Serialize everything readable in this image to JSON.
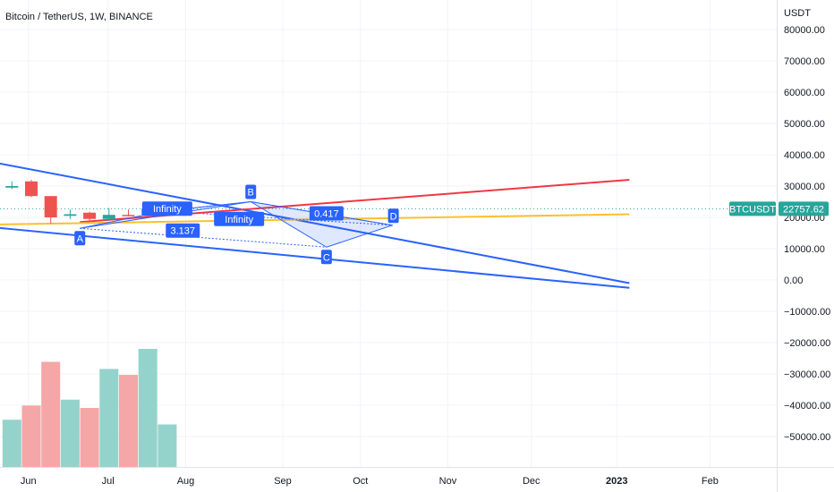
{
  "header": {
    "title": "Bitcoin / TetherUS, 1W, BINANCE"
  },
  "price_axis": {
    "currency": "USDT"
  },
  "chart_data": {
    "type": "candlestick",
    "x_ticks": [
      "Jun",
      "Jul",
      "Aug",
      "Sep",
      "Oct",
      "Nov",
      "Dec",
      "2023",
      "Feb"
    ],
    "bold_x_ticks": [
      "2023"
    ],
    "y_ticks": [
      80000,
      70000,
      60000,
      50000,
      40000,
      30000,
      20000,
      10000,
      0,
      -10000,
      -20000,
      -30000,
      -40000,
      -50000
    ],
    "y_tick_labels": [
      "80000.00",
      "70000.00",
      "60000.00",
      "50000.00",
      "40000.00",
      "30000.00",
      "20000.00",
      "10000.00",
      "0.00",
      "−10000.00",
      "−20000.00",
      "−30000.00",
      "−40000.00",
      "−50000.00"
    ],
    "grid": true,
    "last_price": {
      "symbol": "BTCUSDT",
      "value": 22757.62,
      "label": "22757.62",
      "color": "#26a69a"
    },
    "candles": [
      {
        "week": -1,
        "open": 29500,
        "high": 31500,
        "low": 29000,
        "close": 30000
      },
      {
        "week": 0,
        "open": 31500,
        "high": 32000,
        "low": 26500,
        "close": 26800
      },
      {
        "week": 1,
        "open": 26800,
        "high": 26800,
        "low": 18000,
        "close": 20000
      },
      {
        "week": 2,
        "open": 20500,
        "high": 22500,
        "low": 19500,
        "close": 21000
      },
      {
        "week": 3,
        "open": 21500,
        "high": 21800,
        "low": 18700,
        "close": 19500
      },
      {
        "week": 4,
        "open": 19500,
        "high": 23000,
        "low": 18800,
        "close": 20800
      },
      {
        "week": 5,
        "open": 20800,
        "high": 22500,
        "low": 20300,
        "close": 20700
      },
      {
        "week": 6,
        "open": 20800,
        "high": 24500,
        "low": 20500,
        "close": 22800
      }
    ],
    "volume": {
      "weeks": [
        -1,
        0,
        1,
        2,
        3,
        4,
        5,
        6,
        7
      ],
      "values": [
        0.4,
        0.52,
        0.89,
        0.57,
        0.5,
        0.83,
        0.78,
        1.0,
        0.36
      ],
      "colors": [
        "up",
        "down",
        "down",
        "up",
        "down",
        "up",
        "down",
        "up",
        "up"
      ]
    },
    "colors": {
      "up": "#26a69a",
      "down": "#ef5350",
      "volume_up": "#94d3cc",
      "volume_down": "#f5a6a6"
    },
    "trendlines": [
      {
        "color": "#2962ff",
        "from": {
          "week": -4.0,
          "price": 40000
        },
        "to": {
          "week": 30.8,
          "price": -1000
        }
      },
      {
        "color": "#2962ff",
        "from": {
          "week": -4.0,
          "price": 18000
        },
        "to": {
          "week": 30.8,
          "price": -2500
        }
      },
      {
        "color": "#f23645",
        "from": {
          "week": 2.5,
          "price": 18500
        },
        "to": {
          "week": 30.8,
          "price": 32000
        }
      },
      {
        "color": "#fbc02d",
        "from": {
          "week": -4.0,
          "price": 17500
        },
        "to": {
          "week": 30.8,
          "price": 21000
        }
      }
    ],
    "harmonic_pattern": {
      "color": "#2962ff",
      "points": {
        "X": {
          "week": 6.8,
          "price": 22000
        },
        "A": {
          "week": 2.5,
          "price": 16500
        },
        "B": {
          "week": 11.3,
          "price": 25000
        },
        "C": {
          "week": 15.2,
          "price": 10500
        },
        "D": {
          "week": 18.6,
          "price": 17500
        }
      },
      "labels": [
        "A",
        "B",
        "C",
        "D"
      ],
      "ratios": [
        {
          "text": "Infinity",
          "at": {
            "week": 7.0,
            "price": 22800
          }
        },
        {
          "text": "Infinity",
          "at": {
            "week": 10.7,
            "price": 19500
          }
        },
        {
          "text": "3.137",
          "at": {
            "week": 7.8,
            "price": 15800
          }
        },
        {
          "text": "0.417",
          "at": {
            "week": 15.2,
            "price": 21300
          }
        }
      ]
    }
  }
}
